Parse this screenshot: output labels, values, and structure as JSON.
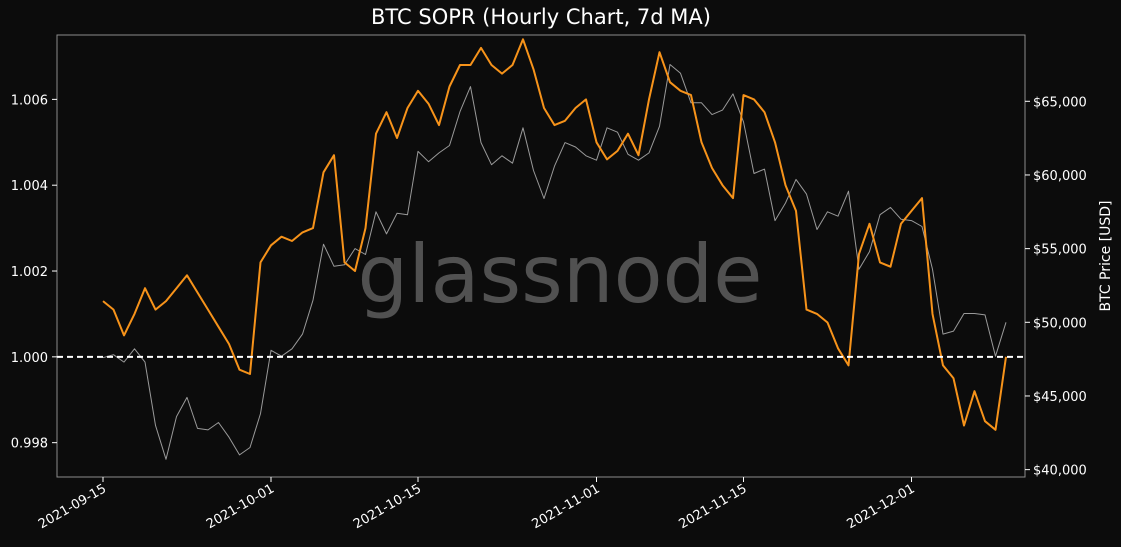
{
  "chart_data": {
    "type": "line",
    "title": "BTC SOPR (Hourly Chart, 7d MA)",
    "watermark": "glassnode",
    "ylabel_left": "",
    "ylabel_right": "BTC Price [USD]",
    "x_ticks": [
      "2021-09-15",
      "2021-10-01",
      "2021-10-15",
      "2021-11-01",
      "2021-11-15",
      "2021-12-01"
    ],
    "x_range": [
      "2021-09-15",
      "2021-12-10"
    ],
    "left_axis": {
      "range": [
        0.9972,
        1.0075
      ],
      "ticks": [
        0.998,
        1.0,
        1.002,
        1.004,
        1.006
      ],
      "tick_labels": [
        "0.998",
        "1.000",
        "1.002",
        "1.004",
        "1.006"
      ]
    },
    "right_axis": {
      "range": [
        39500,
        69500
      ],
      "ticks": [
        40000,
        45000,
        50000,
        55000,
        60000,
        65000
      ],
      "tick_labels": [
        "$40,000",
        "$45,000",
        "$50,000",
        "$55,000",
        "$60,000",
        "$65,000"
      ]
    },
    "reference_line": {
      "value": 1.0,
      "style": "dashed",
      "color": "#ffffff"
    },
    "series": [
      {
        "name": "SOPR (7d MA)",
        "axis": "left",
        "color": "#f7931a",
        "points": [
          [
            "2021-09-15",
            1.0013
          ],
          [
            "2021-09-16",
            1.0011
          ],
          [
            "2021-09-17",
            1.0005
          ],
          [
            "2021-09-18",
            1.001
          ],
          [
            "2021-09-19",
            1.0016
          ],
          [
            "2021-09-20",
            1.0011
          ],
          [
            "2021-09-21",
            1.0013
          ],
          [
            "2021-09-22",
            1.0016
          ],
          [
            "2021-09-23",
            1.0019
          ],
          [
            "2021-09-24",
            1.0015
          ],
          [
            "2021-09-25",
            1.0011
          ],
          [
            "2021-09-26",
            1.0007
          ],
          [
            "2021-09-27",
            1.0003
          ],
          [
            "2021-09-28",
            0.9997
          ],
          [
            "2021-09-29",
            0.9996
          ],
          [
            "2021-09-30",
            1.0022
          ],
          [
            "2021-10-01",
            1.0026
          ],
          [
            "2021-10-02",
            1.0028
          ],
          [
            "2021-10-03",
            1.0027
          ],
          [
            "2021-10-04",
            1.0029
          ],
          [
            "2021-10-05",
            1.003
          ],
          [
            "2021-10-06",
            1.0043
          ],
          [
            "2021-10-07",
            1.0047
          ],
          [
            "2021-10-08",
            1.0022
          ],
          [
            "2021-10-09",
            1.002
          ],
          [
            "2021-10-10",
            1.003
          ],
          [
            "2021-10-11",
            1.0052
          ],
          [
            "2021-10-12",
            1.0057
          ],
          [
            "2021-10-13",
            1.0051
          ],
          [
            "2021-10-14",
            1.0058
          ],
          [
            "2021-10-15",
            1.0062
          ],
          [
            "2021-10-16",
            1.0059
          ],
          [
            "2021-10-17",
            1.0054
          ],
          [
            "2021-10-18",
            1.0063
          ],
          [
            "2021-10-19",
            1.0068
          ],
          [
            "2021-10-20",
            1.0068
          ],
          [
            "2021-10-21",
            1.0072
          ],
          [
            "2021-10-22",
            1.0068
          ],
          [
            "2021-10-23",
            1.0066
          ],
          [
            "2021-10-24",
            1.0068
          ],
          [
            "2021-10-25",
            1.0074
          ],
          [
            "2021-10-26",
            1.0067
          ],
          [
            "2021-10-27",
            1.0058
          ],
          [
            "2021-10-28",
            1.0054
          ],
          [
            "2021-10-29",
            1.0055
          ],
          [
            "2021-10-30",
            1.0058
          ],
          [
            "2021-10-31",
            1.006
          ],
          [
            "2021-11-01",
            1.005
          ],
          [
            "2021-11-02",
            1.0046
          ],
          [
            "2021-11-03",
            1.0048
          ],
          [
            "2021-11-04",
            1.0052
          ],
          [
            "2021-11-05",
            1.0047
          ],
          [
            "2021-11-06",
            1.006
          ],
          [
            "2021-11-07",
            1.0071
          ],
          [
            "2021-11-08",
            1.0064
          ],
          [
            "2021-11-09",
            1.0062
          ],
          [
            "2021-11-10",
            1.0061
          ],
          [
            "2021-11-11",
            1.005
          ],
          [
            "2021-11-12",
            1.0044
          ],
          [
            "2021-11-13",
            1.004
          ],
          [
            "2021-11-14",
            1.0037
          ],
          [
            "2021-11-15",
            1.0061
          ],
          [
            "2021-11-16",
            1.006
          ],
          [
            "2021-11-17",
            1.0057
          ],
          [
            "2021-11-18",
            1.005
          ],
          [
            "2021-11-19",
            1.004
          ],
          [
            "2021-11-20",
            1.0034
          ],
          [
            "2021-11-21",
            1.0011
          ],
          [
            "2021-11-22",
            1.001
          ],
          [
            "2021-11-23",
            1.0008
          ],
          [
            "2021-11-24",
            1.0002
          ],
          [
            "2021-11-25",
            0.9998
          ],
          [
            "2021-11-26",
            1.0024
          ],
          [
            "2021-11-27",
            1.0031
          ],
          [
            "2021-11-28",
            1.0022
          ],
          [
            "2021-11-29",
            1.0021
          ],
          [
            "2021-11-30",
            1.0031
          ],
          [
            "2021-12-01",
            1.0034
          ],
          [
            "2021-12-02",
            1.0037
          ],
          [
            "2021-12-03",
            1.001
          ],
          [
            "2021-12-04",
            0.9998
          ],
          [
            "2021-12-05",
            0.9995
          ],
          [
            "2021-12-06",
            0.9984
          ],
          [
            "2021-12-07",
            0.9992
          ],
          [
            "2021-12-08",
            0.9985
          ],
          [
            "2021-12-09",
            0.9983
          ],
          [
            "2021-12-10",
            1.0
          ]
        ]
      },
      {
        "name": "BTC Price [USD]",
        "axis": "right",
        "color": "#9a9a9a",
        "points": [
          [
            "2021-09-15",
            47600
          ],
          [
            "2021-09-16",
            47800
          ],
          [
            "2021-09-17",
            47300
          ],
          [
            "2021-09-18",
            48200
          ],
          [
            "2021-09-19",
            47300
          ],
          [
            "2021-09-20",
            43000
          ],
          [
            "2021-09-21",
            40700
          ],
          [
            "2021-09-22",
            43600
          ],
          [
            "2021-09-23",
            44900
          ],
          [
            "2021-09-24",
            42800
          ],
          [
            "2021-09-25",
            42700
          ],
          [
            "2021-09-26",
            43200
          ],
          [
            "2021-09-27",
            42200
          ],
          [
            "2021-09-28",
            41000
          ],
          [
            "2021-09-29",
            41500
          ],
          [
            "2021-09-30",
            43800
          ],
          [
            "2021-10-01",
            48100
          ],
          [
            "2021-10-02",
            47700
          ],
          [
            "2021-10-03",
            48200
          ],
          [
            "2021-10-04",
            49200
          ],
          [
            "2021-10-05",
            51500
          ],
          [
            "2021-10-06",
            55300
          ],
          [
            "2021-10-07",
            53800
          ],
          [
            "2021-10-08",
            53900
          ],
          [
            "2021-10-09",
            55000
          ],
          [
            "2021-10-10",
            54600
          ],
          [
            "2021-10-11",
            57500
          ],
          [
            "2021-10-12",
            56000
          ],
          [
            "2021-10-13",
            57400
          ],
          [
            "2021-10-14",
            57300
          ],
          [
            "2021-10-15",
            61600
          ],
          [
            "2021-10-16",
            60900
          ],
          [
            "2021-10-17",
            61500
          ],
          [
            "2021-10-18",
            62000
          ],
          [
            "2021-10-19",
            64300
          ],
          [
            "2021-10-20",
            66000
          ],
          [
            "2021-10-21",
            62200
          ],
          [
            "2021-10-22",
            60700
          ],
          [
            "2021-10-23",
            61300
          ],
          [
            "2021-10-24",
            60800
          ],
          [
            "2021-10-25",
            63200
          ],
          [
            "2021-10-26",
            60300
          ],
          [
            "2021-10-27",
            58400
          ],
          [
            "2021-10-28",
            60600
          ],
          [
            "2021-10-29",
            62200
          ],
          [
            "2021-10-30",
            61900
          ],
          [
            "2021-10-31",
            61300
          ],
          [
            "2021-11-01",
            61000
          ],
          [
            "2021-11-02",
            63200
          ],
          [
            "2021-11-03",
            62900
          ],
          [
            "2021-11-04",
            61400
          ],
          [
            "2021-11-05",
            61000
          ],
          [
            "2021-11-06",
            61500
          ],
          [
            "2021-11-07",
            63300
          ],
          [
            "2021-11-08",
            67500
          ],
          [
            "2021-11-09",
            66900
          ],
          [
            "2021-11-10",
            64900
          ],
          [
            "2021-11-11",
            64900
          ],
          [
            "2021-11-12",
            64100
          ],
          [
            "2021-11-13",
            64400
          ],
          [
            "2021-11-14",
            65500
          ],
          [
            "2021-11-15",
            63600
          ],
          [
            "2021-11-16",
            60100
          ],
          [
            "2021-11-17",
            60400
          ],
          [
            "2021-11-18",
            56900
          ],
          [
            "2021-11-19",
            58100
          ],
          [
            "2021-11-20",
            59700
          ],
          [
            "2021-11-21",
            58700
          ],
          [
            "2021-11-22",
            56300
          ],
          [
            "2021-11-23",
            57500
          ],
          [
            "2021-11-24",
            57200
          ],
          [
            "2021-11-25",
            58900
          ],
          [
            "2021-11-26",
            53600
          ],
          [
            "2021-11-27",
            54800
          ],
          [
            "2021-11-28",
            57300
          ],
          [
            "2021-11-29",
            57800
          ],
          [
            "2021-11-30",
            57000
          ],
          [
            "2021-12-01",
            56900
          ],
          [
            "2021-12-02",
            56500
          ],
          [
            "2021-12-03",
            53600
          ],
          [
            "2021-12-04",
            49200
          ],
          [
            "2021-12-05",
            49400
          ],
          [
            "2021-12-06",
            50600
          ],
          [
            "2021-12-07",
            50600
          ],
          [
            "2021-12-08",
            50500
          ],
          [
            "2021-12-09",
            47700
          ],
          [
            "2021-12-10",
            50000
          ]
        ]
      }
    ],
    "grid": false,
    "legend": "none"
  }
}
